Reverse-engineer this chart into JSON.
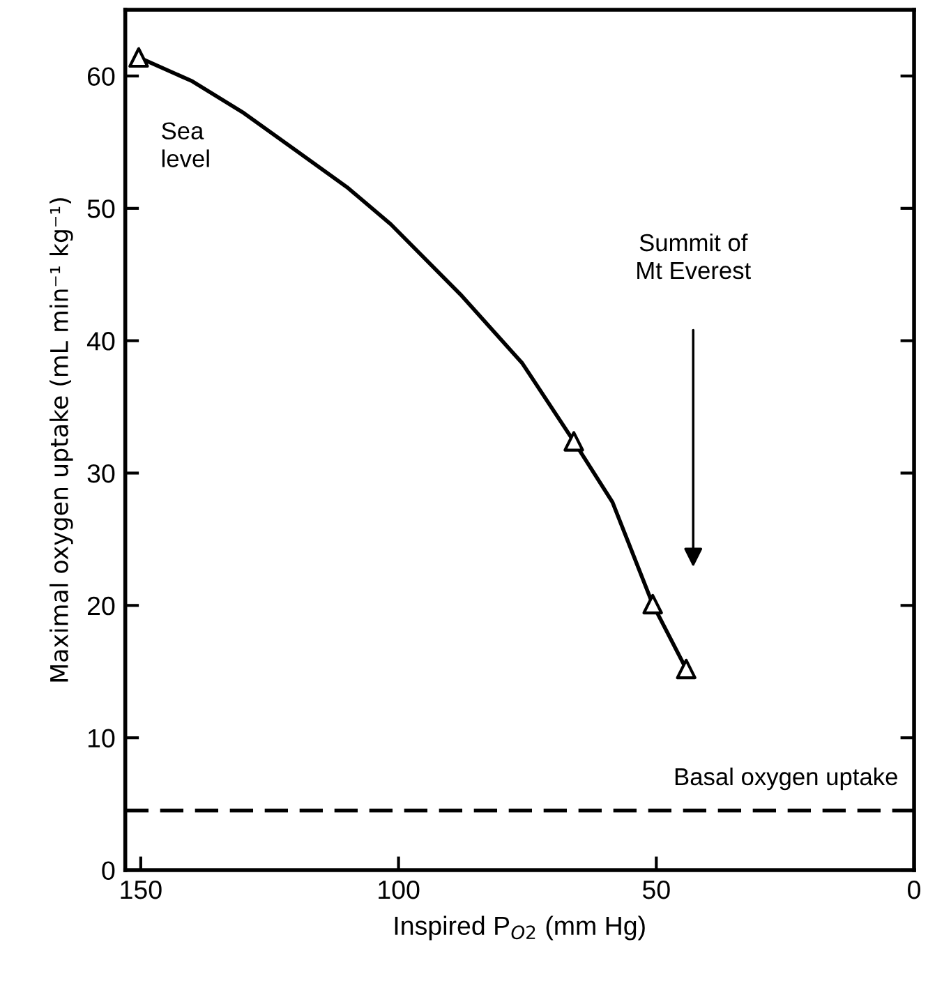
{
  "chart_data": {
    "type": "line",
    "xlabel": "Inspired P$_{O2}$ (mm Hg)",
    "ylabel": "Maximal oxygen uptake (mL min⁻¹ kg⁻¹)",
    "xlim": [
      153,
      0
    ],
    "xticks": [
      150,
      100,
      50,
      0
    ],
    "ylim": [
      0,
      65
    ],
    "yticks": [
      0,
      10,
      20,
      30,
      40,
      50,
      60
    ],
    "series": [
      {
        "color": "#000000",
        "marker": "none",
        "line_style": "solid",
        "x": [
          150.4,
          140,
          130,
          120,
          110,
          101.5,
          88,
          76,
          66,
          58.5,
          50.7,
          44.2
        ],
        "values": [
          61.4,
          59.6,
          57.2,
          54.4,
          51.6,
          48.8,
          43.5,
          38.3,
          32.4,
          27.8,
          20.1,
          15.2
        ]
      },
      {
        "type": "scatter",
        "color": "#000000",
        "marker": "triangle",
        "x": [
          150.4,
          66,
          50.7,
          44.2
        ],
        "values": [
          61.4,
          32.4,
          20.1,
          15.2
        ]
      }
    ],
    "ref_lines": [
      {
        "axis": "y",
        "value": 4.5,
        "label": "Basal oxygen uptake",
        "color": "#000000",
        "line_style": "dashed"
      }
    ],
    "annotations": [
      "Sea\nlevel",
      "Summit of\nMt Everest"
    ]
  }
}
